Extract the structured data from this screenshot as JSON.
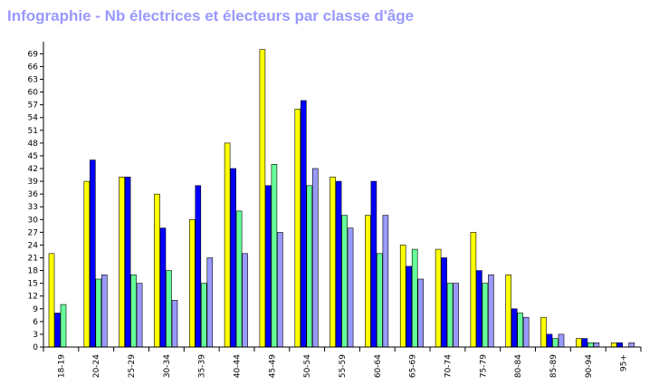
{
  "colors": {
    "title": "#9999ff",
    "series": [
      "#ffff00",
      "#0000ff",
      "#66ff99",
      "#9999ff"
    ],
    "axis": "#000000"
  },
  "chart_data": {
    "type": "bar",
    "title": "Infographie - Nb électrices et électeurs par classe d'âge",
    "xlabel": "",
    "ylabel": "",
    "ylim": [
      0,
      71
    ],
    "yticks": [
      0,
      3,
      6,
      9,
      12,
      15,
      18,
      21,
      24,
      27,
      30,
      33,
      36,
      39,
      42,
      45,
      48,
      51,
      54,
      57,
      60,
      63,
      66,
      69
    ],
    "grid": false,
    "legend": "none",
    "categories": [
      "18-19",
      "20-24",
      "25-29",
      "30-34",
      "35-39",
      "40-44",
      "45-49",
      "50-54",
      "55-59",
      "60-64",
      "65-69",
      "70-74",
      "75-79",
      "80-84",
      "85-89",
      "90-94",
      "95+"
    ],
    "series": [
      {
        "color": "#ffff00",
        "values": [
          22,
          39,
          40,
          36,
          30,
          48,
          70,
          56,
          40,
          31,
          24,
          23,
          27,
          17,
          7,
          2,
          1
        ]
      },
      {
        "color": "#0000ff",
        "values": [
          8,
          44,
          40,
          28,
          38,
          42,
          38,
          58,
          39,
          39,
          19,
          21,
          18,
          9,
          3,
          2,
          1
        ]
      },
      {
        "color": "#66ff99",
        "values": [
          10,
          16,
          17,
          18,
          15,
          32,
          43,
          38,
          31,
          22,
          23,
          15,
          15,
          8,
          2,
          1,
          0
        ]
      },
      {
        "color": "#9999ff",
        "values": [
          0,
          17,
          15,
          11,
          21,
          22,
          27,
          42,
          28,
          31,
          16,
          15,
          17,
          7,
          3,
          1,
          1
        ]
      }
    ]
  }
}
